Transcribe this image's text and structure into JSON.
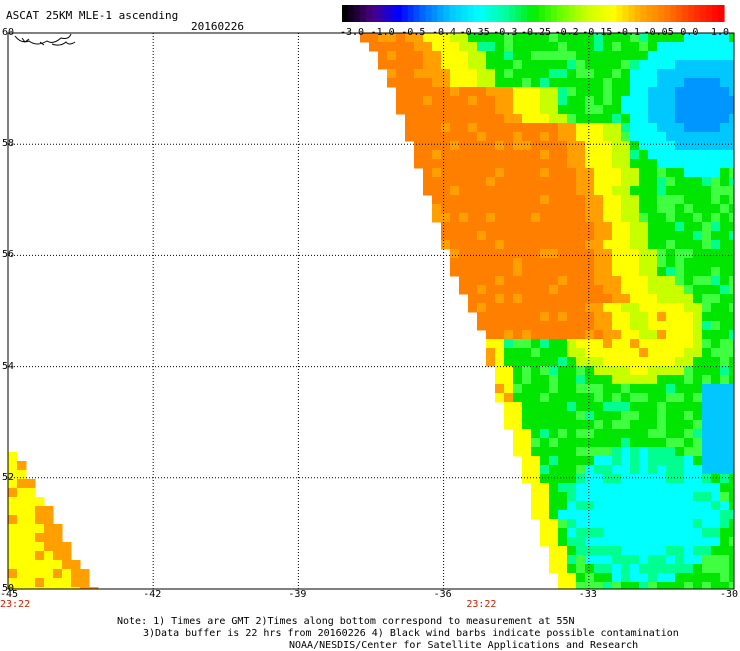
{
  "header": {
    "title": "ASCAT 25KM MLE-1 ascending",
    "date": "20160226"
  },
  "colorbar": {
    "labels": [
      "-3.0",
      "-1.0",
      "-0.5",
      "-0.4",
      "-0.35",
      "-0.3",
      "-0.25",
      "-0.2",
      "-0.15",
      "-0.1",
      "-0.05",
      "0.0",
      "1.0"
    ],
    "colors": [
      "#000000",
      "#4b0082",
      "#0000ff",
      "#0070ff",
      "#00ccff",
      "#00ffff",
      "#00ff99",
      "#00ee00",
      "#66ff00",
      "#ccff00",
      "#ffff00",
      "#ffaa00",
      "#ff7700",
      "#ff3300",
      "#ff0000"
    ]
  },
  "map": {
    "lon_ticks": [
      "-45",
      "-42",
      "-39",
      "-36",
      "-33",
      "-30"
    ],
    "lat_ticks": [
      "60",
      "58",
      "56",
      "54",
      "52",
      "50"
    ],
    "times": [
      {
        "label": "23:22",
        "lon": -45
      },
      {
        "label": "23:22",
        "lon": -35.2
      }
    ],
    "colors": {
      "orange": "#ff8000",
      "orange_light": "#ffa000",
      "yellow": "#ffff00",
      "yellow_green": "#c8ff00",
      "green": "#00e600",
      "green_light": "#40ff40",
      "aqua_green": "#00ff90",
      "cyan": "#00ffff",
      "light_blue": "#00c8ff",
      "blue": "#0096ff"
    }
  },
  "notes": {
    "line1": "Note: 1) Times are GMT 2)Times along bottom correspond to measurement at 55N",
    "line2": "3)Data buffer is 22 hrs from 20160226 4) Black wind barbs indicate possible contamination",
    "line3": "NOAA/NESDIS/Center for Satellite Applications and Research"
  }
}
